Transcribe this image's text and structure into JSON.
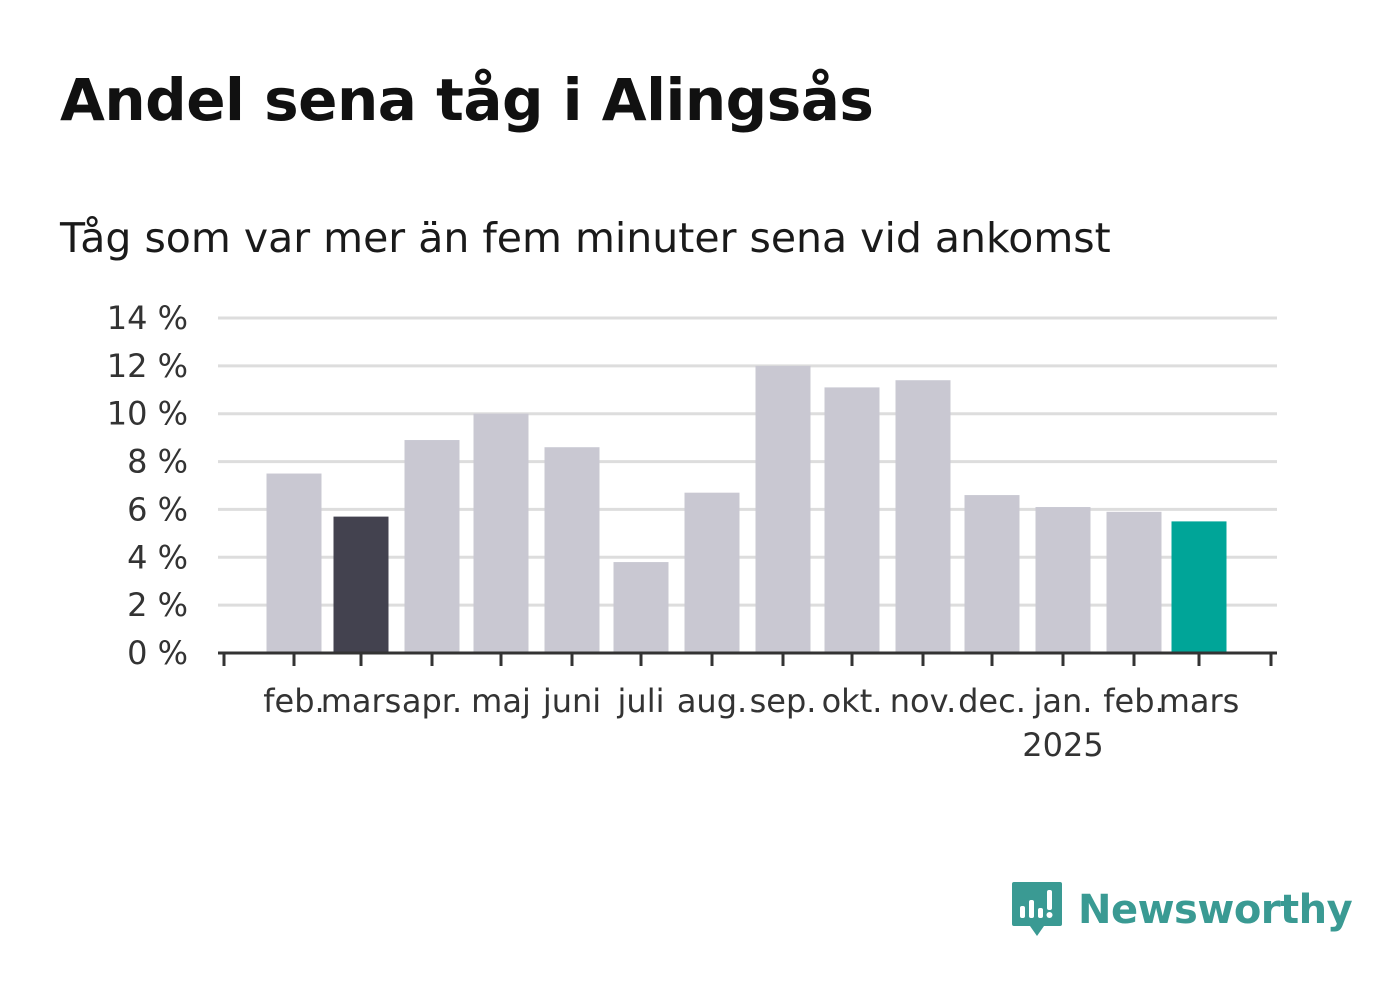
{
  "header": {
    "title": "Andel sena tåg i Alingsås",
    "subtitle": "Tåg som var mer än fem minuter sena vid ankomst"
  },
  "brand": {
    "name": "Newsworthy",
    "color": "#3a9a93"
  },
  "colors": {
    "default_bar": "#c9c8d2",
    "highlight_previous_year": "#43424f",
    "highlight_latest": "#00a598",
    "grid": "#dddddd",
    "axis": "#333333"
  },
  "chart_data": {
    "type": "bar",
    "title": "Andel sena tåg i Alingsås",
    "subtitle": "Tåg som var mer än fem minuter sena vid ankomst",
    "categories": [
      "feb.",
      "mars",
      "apr.",
      "maj",
      "juni",
      "juli",
      "aug.",
      "sep.",
      "okt.",
      "nov.",
      "dec.",
      "jan.",
      "feb.",
      "mars"
    ],
    "category_sublabels": [
      "",
      "",
      "",
      "",
      "",
      "",
      "",
      "",
      "",
      "",
      "",
      "2025",
      "",
      ""
    ],
    "values": [
      7.5,
      5.7,
      8.9,
      10.0,
      8.6,
      3.8,
      6.7,
      12.0,
      11.1,
      11.4,
      6.6,
      6.1,
      5.9,
      5.5
    ],
    "highlight": [
      null,
      "previous_year",
      null,
      null,
      null,
      null,
      null,
      null,
      null,
      null,
      null,
      null,
      null,
      "latest"
    ],
    "unit": "%",
    "ylim": [
      0,
      14
    ],
    "yticks": [
      0,
      2,
      4,
      6,
      8,
      10,
      12,
      14
    ],
    "ytick_labels": [
      "0 %",
      "2 %",
      "4 %",
      "6 %",
      "8 %",
      "10 %",
      "12 %",
      "14 %"
    ],
    "grid": true,
    "legend": false
  }
}
